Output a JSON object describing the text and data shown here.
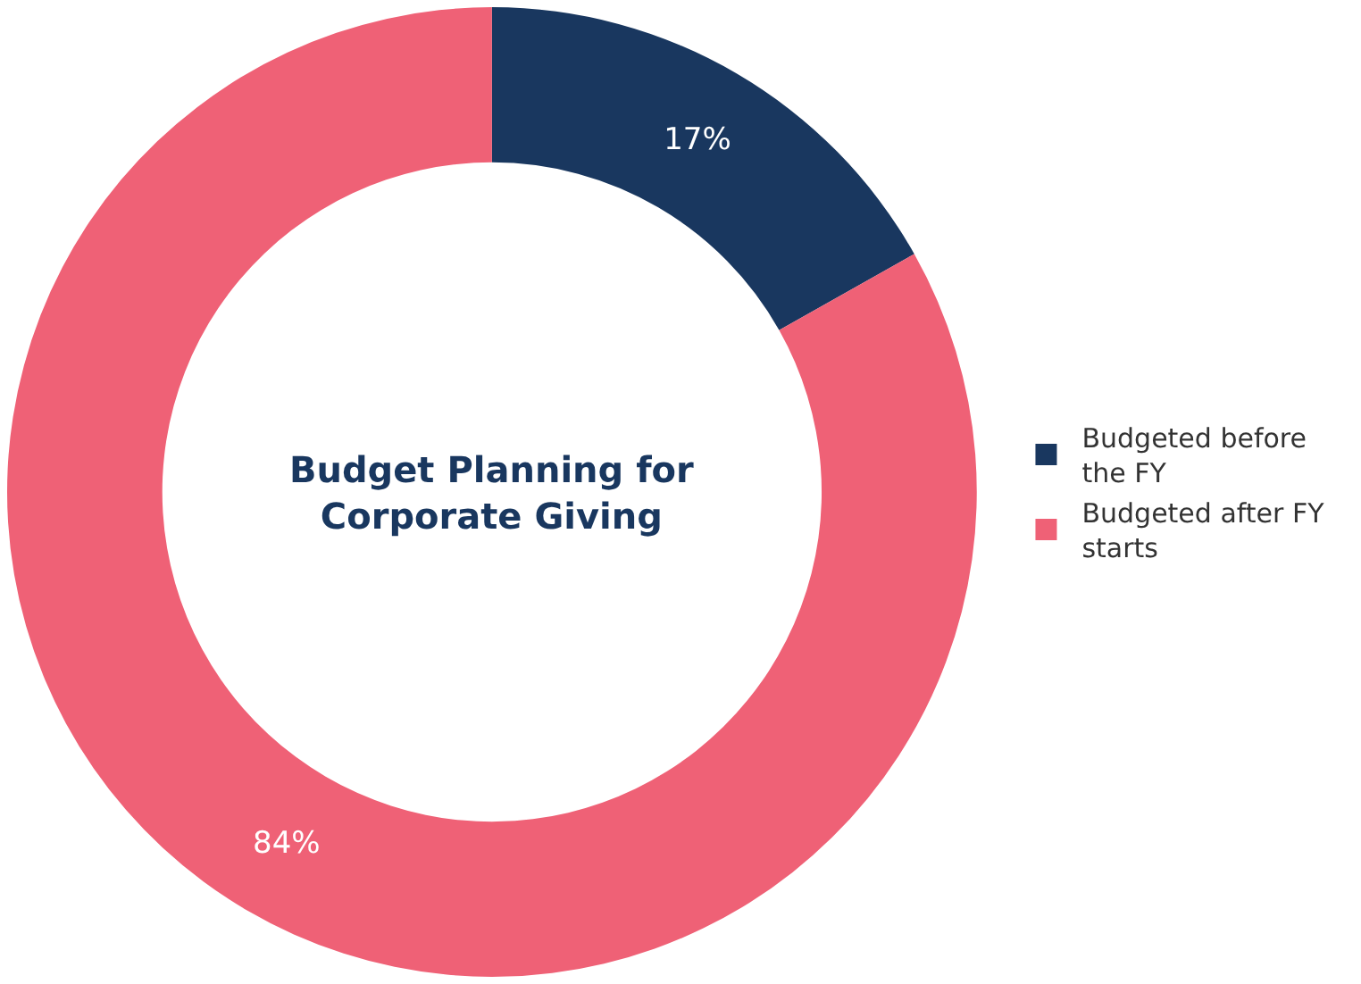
{
  "chart_data": {
    "type": "donut",
    "title": "Budget Planning for Corporate Giving",
    "categories": [
      "Budgeted before the FY",
      "Budgeted after FY starts"
    ],
    "values": [
      17,
      84
    ],
    "colors": [
      "#19375f",
      "#ef6176"
    ],
    "value_labels": [
      "17%",
      "84%"
    ],
    "legend": "right"
  }
}
